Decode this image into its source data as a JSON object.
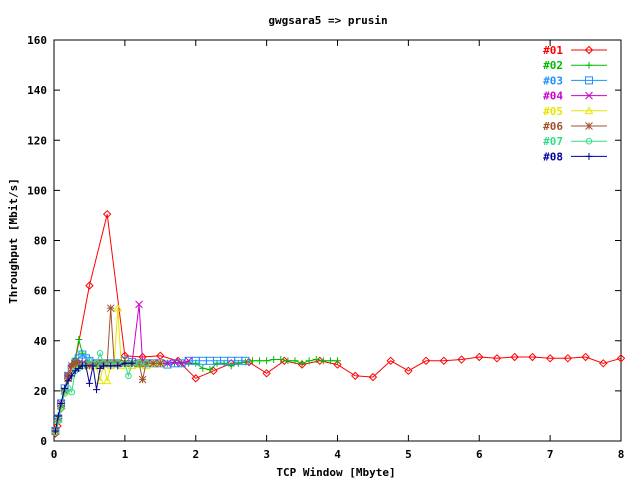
{
  "chart_data": {
    "type": "line",
    "title": "gwgsara5 => prusin",
    "xlabel": "TCP Window [Mbyte]",
    "ylabel": "Throughput [Mbit/s]",
    "xlim": [
      0,
      8
    ],
    "ylim": [
      0,
      160
    ],
    "xticks": [
      "0",
      "1",
      "2",
      "3",
      "4",
      "5",
      "6",
      "7",
      "8"
    ],
    "yticks": [
      "0",
      "20",
      "40",
      "60",
      "80",
      "100",
      "120",
      "140",
      "160"
    ],
    "grid": false,
    "legend_position": "top-right",
    "series": [
      {
        "name": "#01",
        "color": "#ff0000",
        "marker": "diamond",
        "x": [
          0.02,
          0.05,
          0.1,
          0.15,
          0.2,
          0.25,
          0.3,
          0.5,
          0.75,
          1.0,
          1.25,
          1.5,
          1.75,
          2.0,
          2.25,
          2.5,
          2.75,
          3.0,
          3.25,
          3.5,
          3.75,
          4.0,
          4.25,
          4.5,
          4.75,
          5.0,
          5.25,
          5.5,
          5.75,
          6.0,
          6.25,
          6.5,
          6.75,
          7.0,
          7.25,
          7.5,
          7.75,
          8.0
        ],
        "y": [
          3,
          6,
          13,
          20,
          26,
          30,
          32,
          62,
          90.5,
          34,
          33.5,
          34,
          32,
          25,
          28,
          31,
          31.5,
          27,
          32,
          30.5,
          32,
          30.5,
          26,
          25.5,
          32,
          28,
          32,
          32,
          32.5,
          33.5,
          33,
          33.5,
          33.5,
          33,
          33,
          33.5,
          31,
          33
        ]
      },
      {
        "name": "#02",
        "color": "#00bb00",
        "marker": "plus",
        "x": [
          0.02,
          0.06,
          0.1,
          0.15,
          0.2,
          0.25,
          0.3,
          0.35,
          0.4,
          0.5,
          0.6,
          0.7,
          0.8,
          0.9,
          1.0,
          1.1,
          1.2,
          1.3,
          1.4,
          1.5,
          1.6,
          1.7,
          1.8,
          1.9,
          2.0,
          2.1,
          2.2,
          2.3,
          2.4,
          2.5,
          2.6,
          2.7,
          2.8,
          2.9,
          3.0,
          3.1,
          3.2,
          3.3,
          3.4,
          3.5,
          3.6,
          3.7,
          3.8,
          3.9,
          4.0
        ],
        "y": [
          4,
          8,
          14,
          20,
          26,
          30,
          33,
          40.5,
          35,
          31,
          30,
          31,
          31,
          31,
          32,
          31,
          31,
          31,
          31,
          31,
          31,
          31,
          31,
          31,
          31,
          29,
          28.5,
          31,
          31,
          30,
          31,
          31.5,
          32,
          32,
          32,
          32.5,
          32.5,
          32,
          32,
          31,
          32,
          32.5,
          32,
          32,
          32
        ]
      },
      {
        "name": "#03",
        "color": "#1e90ff",
        "marker": "square",
        "x": [
          0.02,
          0.06,
          0.1,
          0.15,
          0.2,
          0.25,
          0.3,
          0.35,
          0.4,
          0.45,
          0.5,
          0.6,
          0.7,
          0.8,
          0.9,
          1.0,
          1.1,
          1.2,
          1.3,
          1.4,
          1.5,
          1.6,
          1.7,
          1.8,
          1.9,
          2.0,
          2.1,
          2.2,
          2.3,
          2.4,
          2.5,
          2.6,
          2.7
        ],
        "y": [
          4,
          9,
          15,
          21,
          26,
          29,
          31,
          33,
          34.5,
          33,
          32,
          31,
          31,
          31,
          31,
          32,
          31.5,
          31,
          31,
          31,
          31,
          30.5,
          31,
          31,
          32,
          32,
          32,
          32,
          32,
          32,
          32,
          32,
          32
        ]
      },
      {
        "name": "#04",
        "color": "#cc00cc",
        "marker": "cross",
        "x": [
          0.02,
          0.06,
          0.1,
          0.15,
          0.2,
          0.25,
          0.3,
          0.35,
          0.4,
          0.5,
          0.6,
          0.7,
          0.8,
          0.9,
          1.0,
          1.1,
          1.2,
          1.25,
          1.3,
          1.4,
          1.5,
          1.6,
          1.7,
          1.8,
          1.9
        ],
        "y": [
          4,
          9,
          15,
          20,
          25,
          29,
          31,
          31,
          31,
          31,
          31,
          31,
          31,
          31,
          31,
          31,
          54.5,
          31,
          31,
          31,
          31,
          31,
          31.5,
          31,
          32
        ]
      },
      {
        "name": "#05",
        "color": "#e6e600",
        "marker": "triangle",
        "x": [
          0.02,
          0.06,
          0.1,
          0.15,
          0.2,
          0.25,
          0.3,
          0.35,
          0.4,
          0.5,
          0.6,
          0.65,
          0.7,
          0.75,
          0.8,
          0.85,
          0.9,
          0.95,
          1.0,
          1.05,
          1.1,
          1.2,
          1.3,
          1.4,
          1.5
        ],
        "y": [
          4,
          9,
          14,
          20,
          25,
          28,
          30,
          30.5,
          30,
          30,
          30,
          24,
          31,
          24,
          30,
          31,
          53,
          30,
          31,
          31,
          30,
          30.5,
          30,
          31,
          31
        ]
      },
      {
        "name": "#06",
        "color": "#a0522d",
        "marker": "star",
        "x": [
          0.02,
          0.06,
          0.1,
          0.15,
          0.2,
          0.25,
          0.3,
          0.35,
          0.4,
          0.5,
          0.6,
          0.7,
          0.75,
          0.8,
          0.85,
          0.9,
          1.0,
          1.1,
          1.2,
          1.25,
          1.3,
          1.4,
          1.5
        ],
        "y": [
          4,
          9,
          14,
          20,
          26,
          30,
          31,
          31,
          30.5,
          30,
          31,
          31,
          31,
          53,
          31,
          31,
          31,
          31,
          31,
          24.5,
          31,
          31,
          31
        ]
      },
      {
        "name": "#07",
        "color": "#33dd88",
        "marker": "circle",
        "x": [
          0.02,
          0.06,
          0.1,
          0.15,
          0.2,
          0.25,
          0.3,
          0.35,
          0.4,
          0.5,
          0.6,
          0.65,
          0.7,
          0.8,
          0.9,
          1.0,
          1.05,
          1.1,
          1.2,
          1.3
        ],
        "y": [
          3.5,
          8,
          13,
          19,
          21,
          19.5,
          28,
          29,
          30,
          32,
          31,
          35,
          31,
          31,
          31,
          31,
          26,
          31,
          31,
          31
        ]
      },
      {
        "name": "#08",
        "color": "#000099",
        "marker": "plus",
        "x": [
          0.02,
          0.06,
          0.1,
          0.15,
          0.2,
          0.25,
          0.3,
          0.35,
          0.4,
          0.45,
          0.5,
          0.55,
          0.6,
          0.65,
          0.7,
          0.8,
          0.9,
          1.0,
          1.1
        ],
        "y": [
          4,
          10,
          15,
          21,
          24,
          26,
          28,
          29,
          30,
          30,
          23,
          30,
          20.5,
          29,
          30,
          30,
          30,
          31,
          31
        ]
      }
    ]
  }
}
